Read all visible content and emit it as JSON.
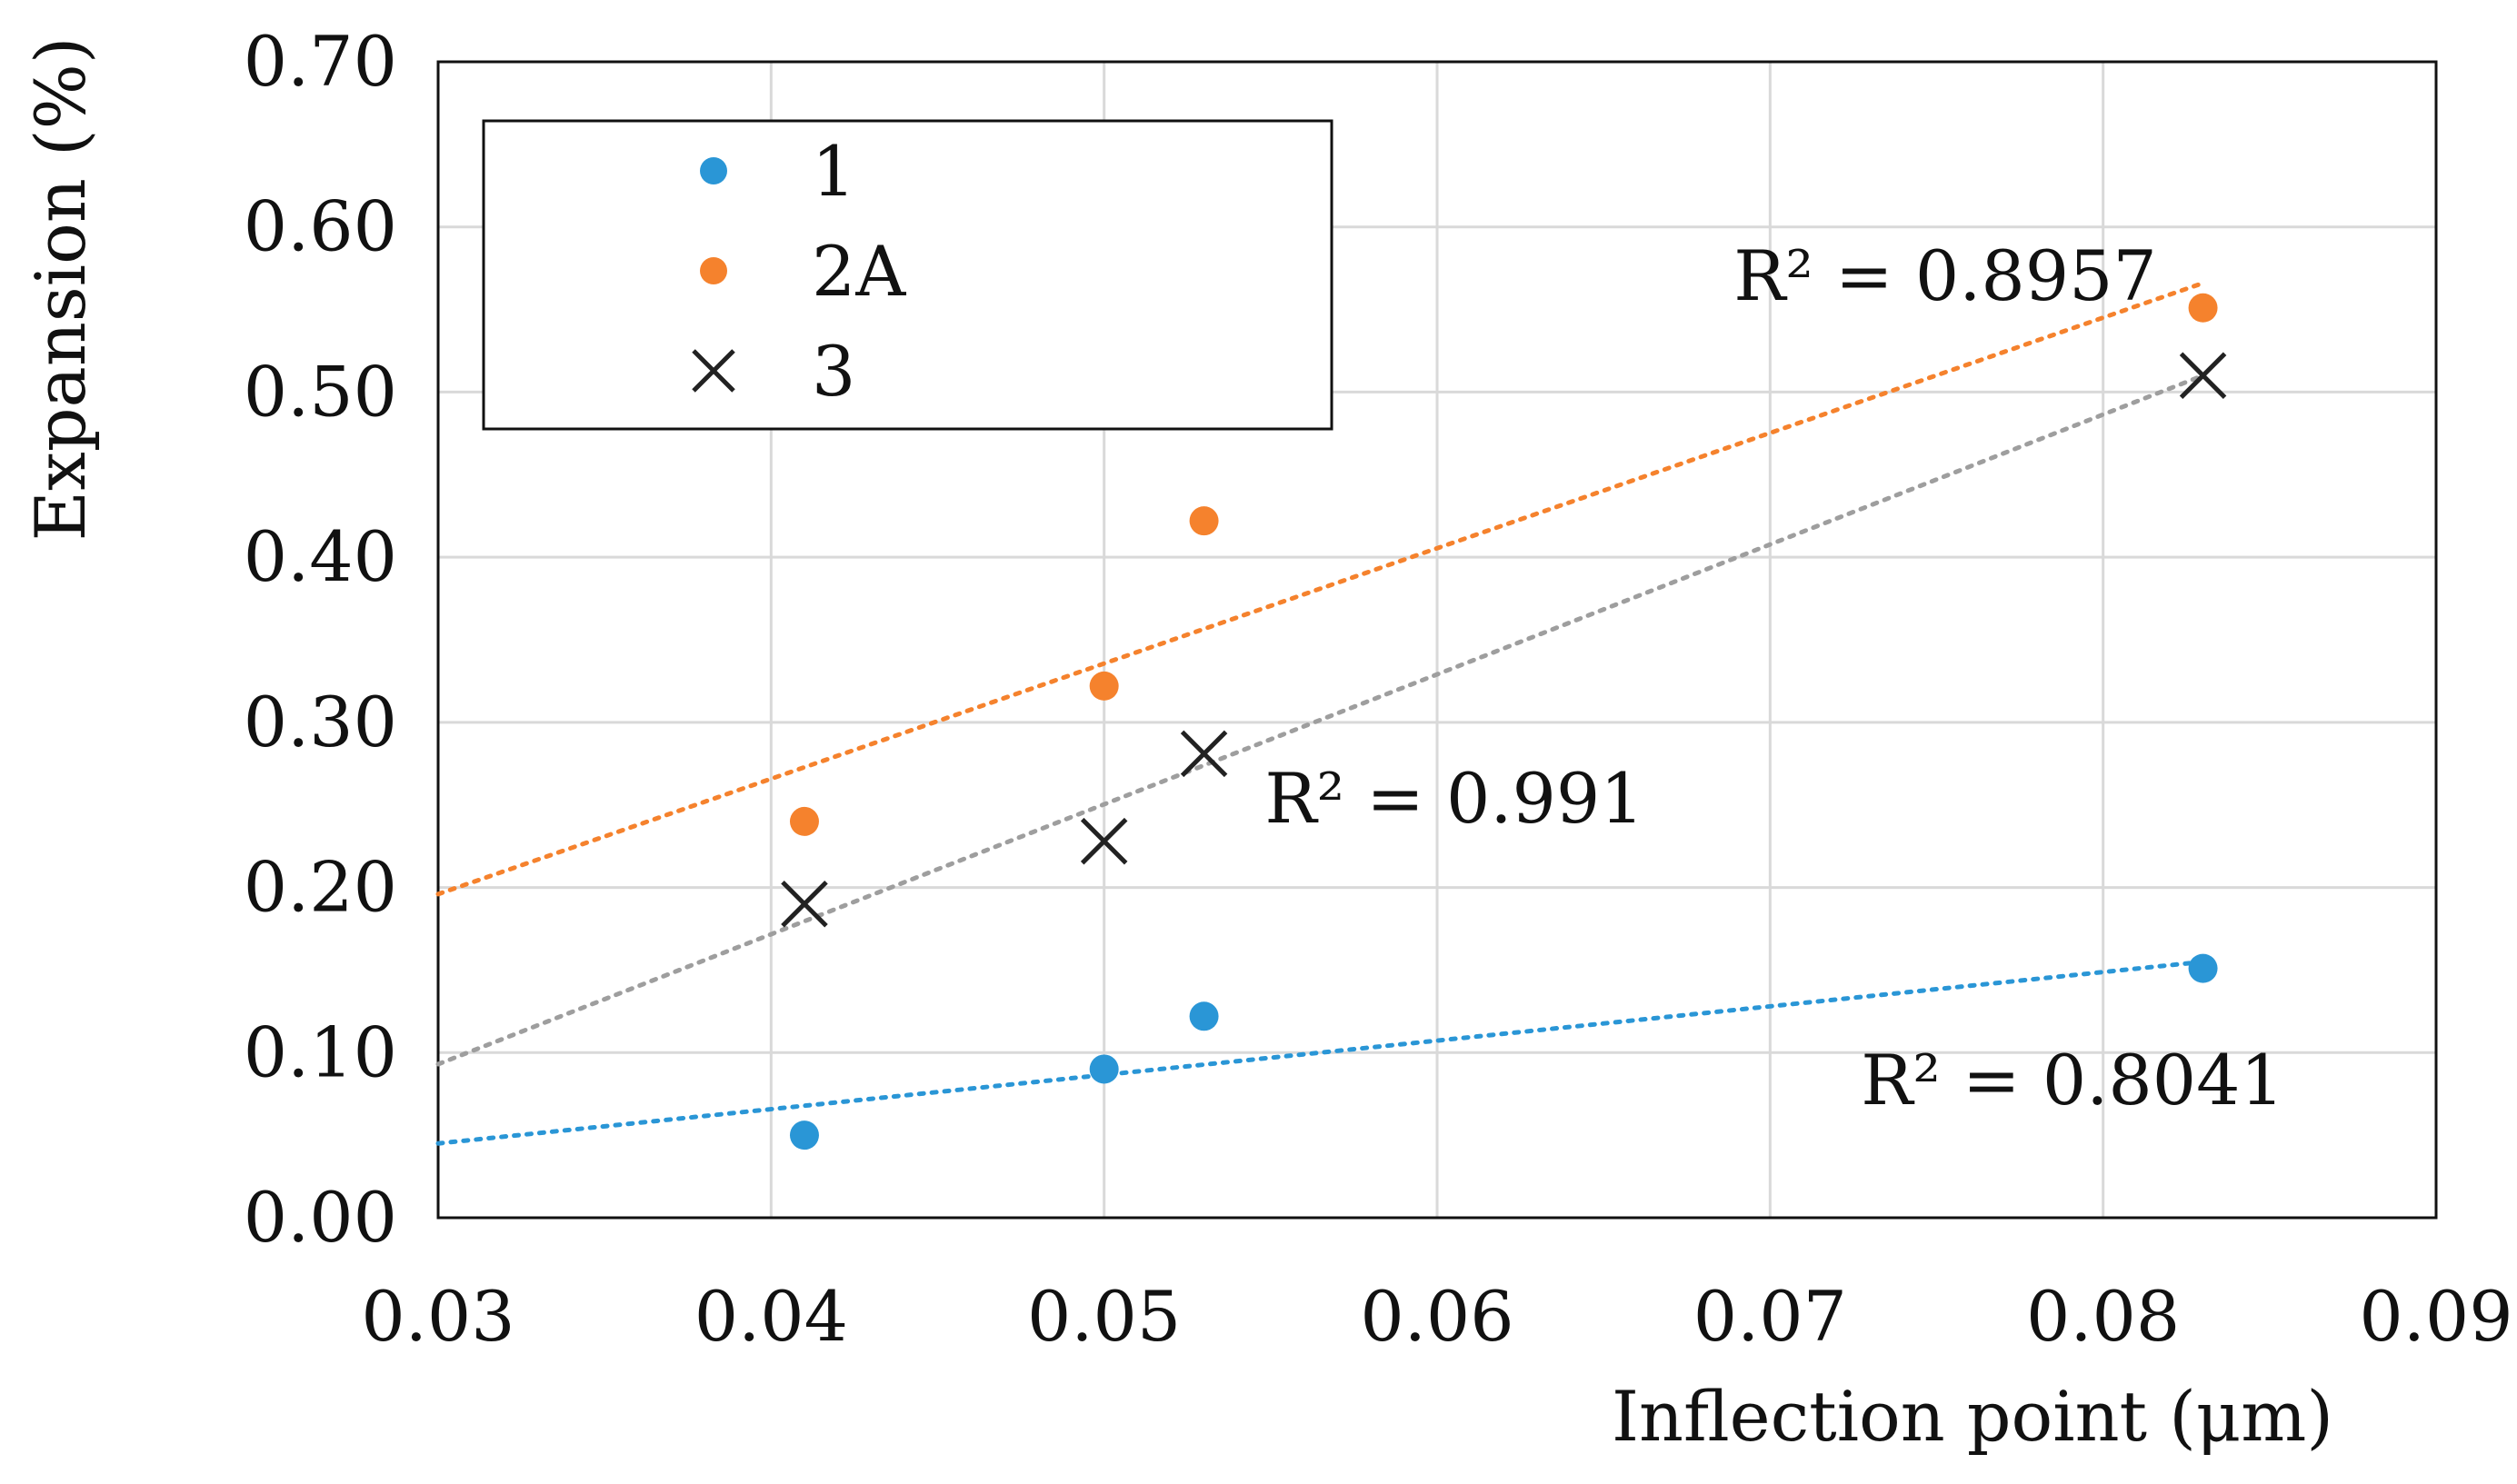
{
  "chart_data": {
    "type": "scatter",
    "title": "",
    "xlabel": "Inflection point (μm)",
    "ylabel": "Expansion (%)",
    "xlim": [
      0.03,
      0.09
    ],
    "ylim": [
      0.0,
      0.7
    ],
    "grid": true,
    "legend_position": "top-left",
    "x_ticks": [
      0.03,
      0.04,
      0.05,
      0.06,
      0.07,
      0.08,
      0.09
    ],
    "x_tick_labels": [
      "0.03",
      "0.04",
      "0.05",
      "0.06",
      "0.07",
      "0.08",
      "0.09"
    ],
    "y_ticks": [
      0.0,
      0.1,
      0.2,
      0.3,
      0.4,
      0.5,
      0.6,
      0.7
    ],
    "y_tick_labels": [
      "0.00",
      "0.10",
      "0.20",
      "0.30",
      "0.40",
      "0.50",
      "0.60",
      "0.70"
    ],
    "series": [
      {
        "name": "1",
        "marker": "circle",
        "color": "#2a96d6",
        "x": [
          0.041,
          0.05,
          0.053,
          0.083
        ],
        "y": [
          0.05,
          0.09,
          0.122,
          0.151
        ],
        "trendline": {
          "style": "dotted",
          "x": [
            0.03,
            0.083
          ],
          "y": [
            0.045,
            0.155
          ]
        },
        "r2_label": "R² = 0.8041"
      },
      {
        "name": "2A",
        "marker": "circle",
        "color": "#f5822d",
        "x": [
          0.041,
          0.05,
          0.053,
          0.083
        ],
        "y": [
          0.24,
          0.322,
          0.422,
          0.551
        ],
        "trendline": {
          "style": "dotted",
          "x": [
            0.03,
            0.083
          ],
          "y": [
            0.196,
            0.566
          ]
        },
        "r2_label": "R² = 0.8957"
      },
      {
        "name": "3",
        "marker": "x",
        "color": "#222222",
        "trend_color": "#9e9e9e",
        "x": [
          0.041,
          0.05,
          0.053,
          0.083
        ],
        "y": [
          0.19,
          0.228,
          0.281,
          0.51
        ],
        "trendline": {
          "style": "dotted",
          "x": [
            0.03,
            0.083
          ],
          "y": [
            0.093,
            0.51
          ]
        },
        "r2_label": "R² = 0.991"
      }
    ]
  }
}
